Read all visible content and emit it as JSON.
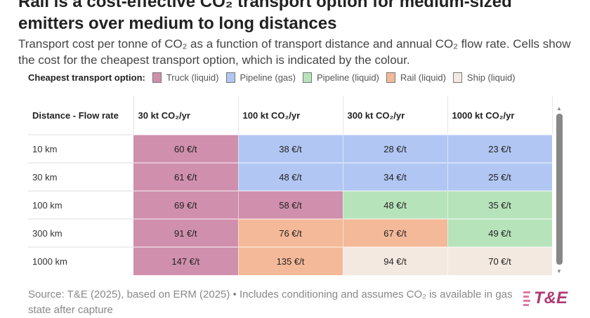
{
  "title": "Rail is a cost-effective CO₂ transport option for medium-sized emitters over medium to long distances",
  "subtitle": "Transport cost per tonne of CO₂ as a function of transport distance and annual CO₂ flow rate. Cells show the cost for the cheapest transport option, which is indicated by the colour.",
  "legend": {
    "label": "Cheapest transport option:",
    "items": [
      {
        "name": "Truck (liquid)",
        "color": "#d08fad"
      },
      {
        "name": "Pipeline (gas)",
        "color": "#b1c6f2"
      },
      {
        "name": "Pipeline (liquid)",
        "color": "#b7e3bb"
      },
      {
        "name": "Rail (liquid)",
        "color": "#f4b998"
      },
      {
        "name": "Ship (liquid)",
        "color": "#f4e9e1"
      }
    ]
  },
  "chart_data": {
    "type": "table",
    "corner_header": "Distance - Flow rate",
    "columns": [
      "30 kt CO₂/yr",
      "100 kt CO₂/yr",
      "300 kt CO₂/yr",
      "1000 kt CO₂/yr"
    ],
    "rows": [
      {
        "label": "10 km",
        "cells": [
          {
            "text": "60 €/t",
            "value": 60,
            "option": "Truck (liquid)"
          },
          {
            "text": "38 €/t",
            "value": 38,
            "option": "Pipeline (gas)"
          },
          {
            "text": "28 €/t",
            "value": 28,
            "option": "Pipeline (gas)"
          },
          {
            "text": "23 €/t",
            "value": 23,
            "option": "Pipeline (gas)"
          }
        ]
      },
      {
        "label": "30 km",
        "cells": [
          {
            "text": "61 €/t",
            "value": 61,
            "option": "Truck (liquid)"
          },
          {
            "text": "48 €/t",
            "value": 48,
            "option": "Pipeline (gas)"
          },
          {
            "text": "34 €/t",
            "value": 34,
            "option": "Pipeline (gas)"
          },
          {
            "text": "25 €/t",
            "value": 25,
            "option": "Pipeline (gas)"
          }
        ]
      },
      {
        "label": "100 km",
        "cells": [
          {
            "text": "69 €/t",
            "value": 69,
            "option": "Truck (liquid)"
          },
          {
            "text": "58 €/t",
            "value": 58,
            "option": "Truck (liquid)"
          },
          {
            "text": "48 €/t",
            "value": 48,
            "option": "Pipeline (liquid)"
          },
          {
            "text": "35 €/t",
            "value": 35,
            "option": "Pipeline (liquid)"
          }
        ]
      },
      {
        "label": "300 km",
        "cells": [
          {
            "text": "91 €/t",
            "value": 91,
            "option": "Truck (liquid)"
          },
          {
            "text": "76 €/t",
            "value": 76,
            "option": "Rail (liquid)"
          },
          {
            "text": "67 €/t",
            "value": 67,
            "option": "Rail (liquid)"
          },
          {
            "text": "49 €/t",
            "value": 49,
            "option": "Pipeline (liquid)"
          }
        ]
      },
      {
        "label": "1000 km",
        "cells": [
          {
            "text": "147 €/t",
            "value": 147,
            "option": "Truck (liquid)"
          },
          {
            "text": "135 €/t",
            "value": 135,
            "option": "Rail (liquid)"
          },
          {
            "text": "94 €/t",
            "value": 94,
            "option": "Ship (liquid)"
          },
          {
            "text": "70 €/t",
            "value": 70,
            "option": "Ship (liquid)"
          }
        ]
      }
    ]
  },
  "source": "Source: T&E (2025), based on ERM (2025) • Includes conditioning and assumes CO₂ is available in gas state after capture",
  "logo": "T&E"
}
